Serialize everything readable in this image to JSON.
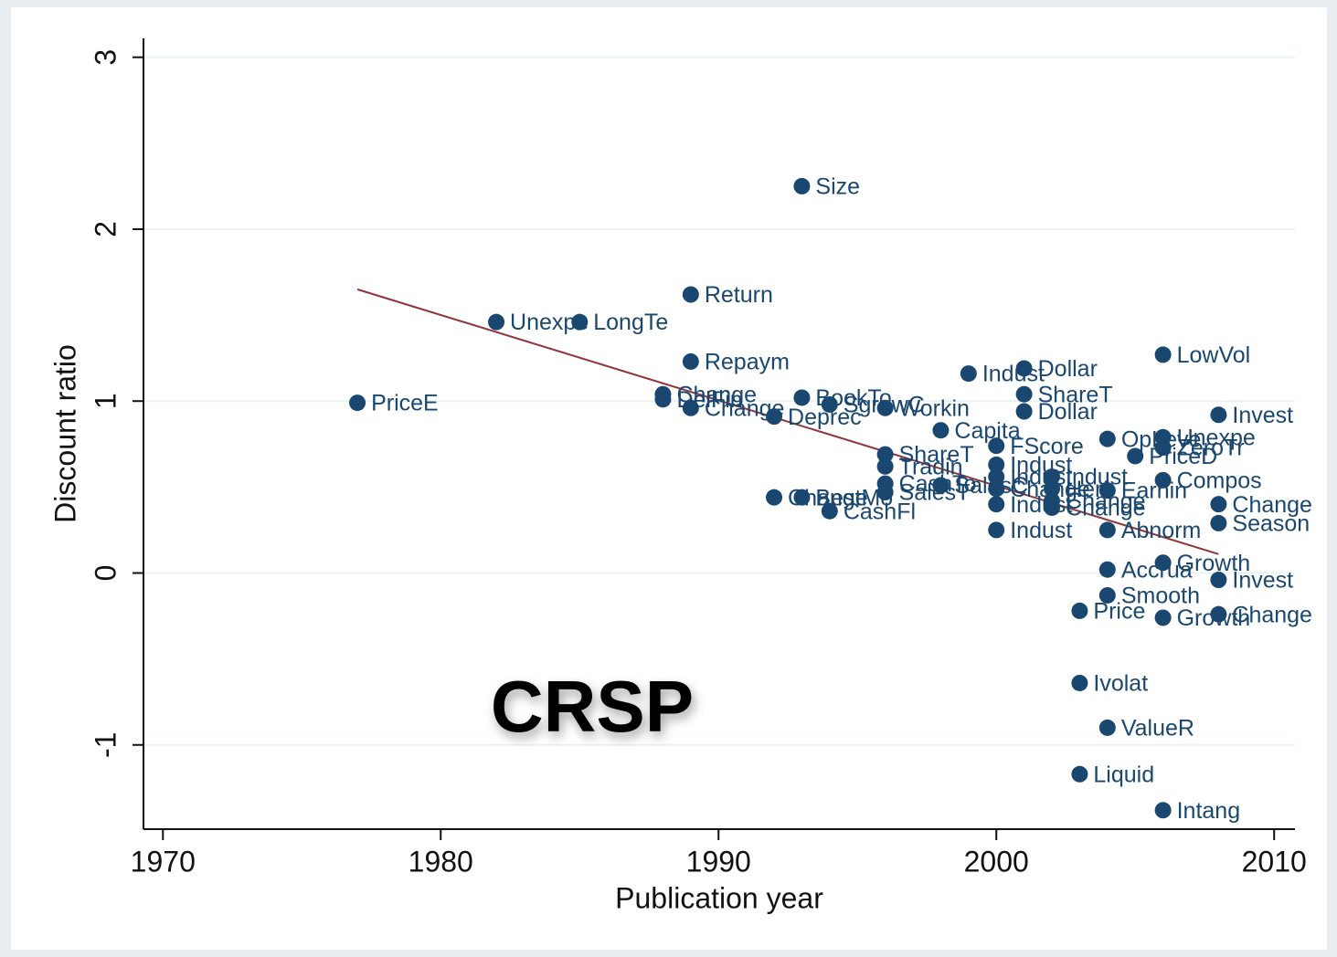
{
  "chart_data": {
    "type": "scatter",
    "x_label": "Publication year",
    "y_label": "Discount ratio",
    "annotation": "CRSP",
    "xlim": [
      1969.3,
      2010.75
    ],
    "ylim": [
      -1.49,
      3.11
    ],
    "xticks": [
      1970,
      1980,
      1990,
      2000,
      2010
    ],
    "yticks": [
      -1,
      0,
      1,
      2,
      3
    ],
    "grid": true,
    "color": "#1a476f",
    "x": [
      1977,
      1982,
      1985,
      1989,
      1989,
      1988,
      1988,
      1989,
      1993,
      1993,
      1994,
      1992,
      1996,
      1998,
      1999,
      2001,
      2001,
      2001,
      2008,
      2006,
      2004,
      2006,
      2006,
      2005,
      2000,
      2000,
      1996,
      1996,
      2006,
      1996,
      1996,
      1998,
      2000,
      2000,
      2000,
      2002,
      2002,
      2002,
      2002,
      2004,
      2008,
      2008,
      2004,
      2000,
      1992,
      1993,
      1994,
      2006,
      2004,
      2008,
      2004,
      2003,
      2006,
      2008,
      2003,
      2004,
      2003,
      2006
    ],
    "values": [
      0.99,
      1.46,
      1.46,
      1.62,
      1.23,
      1.04,
      1.01,
      0.96,
      2.25,
      1.02,
      0.98,
      0.91,
      0.96,
      0.83,
      1.16,
      1.19,
      1.04,
      0.94,
      0.92,
      1.27,
      0.78,
      0.79,
      0.73,
      0.68,
      0.74,
      0.63,
      0.69,
      0.62,
      0.54,
      0.52,
      0.47,
      0.51,
      0.56,
      0.49,
      0.4,
      0.56,
      0.49,
      0.42,
      0.38,
      0.48,
      0.4,
      0.29,
      0.25,
      0.25,
      0.44,
      0.44,
      0.36,
      0.06,
      0.02,
      -0.04,
      -0.13,
      -0.22,
      -0.26,
      -0.24,
      -0.64,
      -0.9,
      -1.17,
      -1.38
    ],
    "point_labels": [
      "PriceE",
      "Unexpe",
      "LongTe",
      "Return",
      "Repaym",
      "Change",
      "DelFin",
      "Change",
      "Size",
      "BookTo",
      "SgrowC",
      "Deprec",
      "Workin",
      "Capita",
      "Indust",
      "Dollar",
      "ShareT",
      "Dollar",
      "Invest",
      "LowVol",
      "OpLeve",
      "Unexpe",
      "ZeroTr",
      "PriceD",
      "FScore",
      "Indust",
      "ShareT",
      "Tradin",
      "Compos",
      "CashTo",
      "SalesT",
      "SalesC",
      "Indust",
      "Change",
      "Indust",
      "Indust",
      "Herf",
      "Change",
      "Change",
      "Earnin",
      "Change",
      "Season",
      "Abnorm",
      "Indust",
      "Change",
      "BestMo",
      "CashFl",
      "Growth",
      "Accrua",
      "Invest",
      "Smooth",
      "Price",
      "Growth",
      "Change",
      "Ivolat",
      "ValueR",
      "Liquid",
      "Intang"
    ],
    "fit": {
      "x": [
        1977,
        2008
      ],
      "values": [
        1.65,
        0.11
      ],
      "color": "#90353b"
    }
  }
}
